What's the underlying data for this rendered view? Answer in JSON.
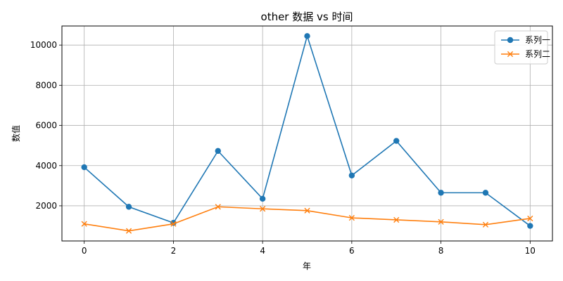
{
  "chart_data": {
    "type": "line",
    "title": "other 数据 vs 时间",
    "xlabel": "年",
    "ylabel": "数值",
    "x": [
      0,
      1,
      2,
      3,
      4,
      5,
      6,
      7,
      8,
      9,
      10
    ],
    "xlim": [
      -0.5,
      10.5
    ],
    "ylim": [
      250,
      10950
    ],
    "xticks": [
      0,
      2,
      4,
      6,
      8,
      10
    ],
    "yticks": [
      2000,
      4000,
      6000,
      8000,
      10000
    ],
    "grid": true,
    "legend_position": "top-right",
    "series": [
      {
        "name": "系列一",
        "color": "#1f77b4",
        "marker": "circle",
        "values": [
          3920,
          1950,
          1150,
          4730,
          2350,
          10450,
          3510,
          5230,
          2650,
          2650,
          1000
        ]
      },
      {
        "name": "系列二",
        "color": "#ff7f0e",
        "marker": "x",
        "values": [
          1100,
          750,
          1100,
          1950,
          1850,
          1760,
          1400,
          1300,
          1200,
          1060,
          1370
        ]
      }
    ]
  }
}
